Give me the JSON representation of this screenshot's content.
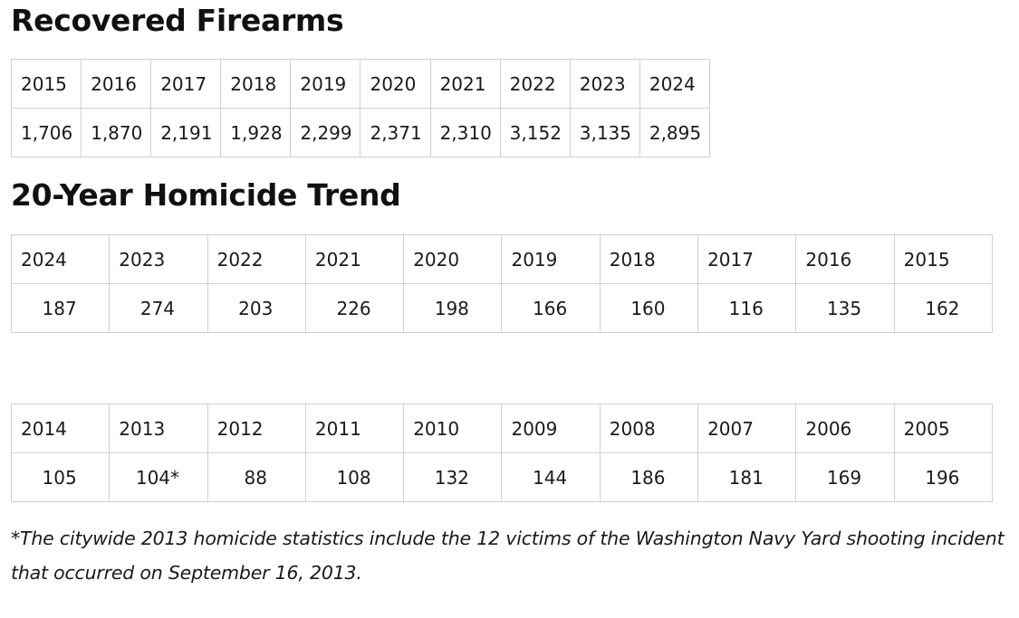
{
  "recovered_firearms": {
    "heading": "Recovered Firearms",
    "years": [
      "2015",
      "2016",
      "2017",
      "2018",
      "2019",
      "2020",
      "2021",
      "2022",
      "2023",
      "2024"
    ],
    "counts": [
      "1,706",
      "1,870",
      "2,191",
      "1,928",
      "2,299",
      "2,371",
      "2,310",
      "3,152",
      "3,135",
      "2,895"
    ]
  },
  "homicide_trend": {
    "heading": "20-Year Homicide Trend",
    "recent": {
      "years": [
        "2024",
        "2023",
        "2022",
        "2021",
        "2020",
        "2019",
        "2018",
        "2017",
        "2016",
        "2015"
      ],
      "counts": [
        "187",
        "274",
        "203",
        "226",
        "198",
        "166",
        "160",
        "116",
        "135",
        "162"
      ]
    },
    "earlier": {
      "years": [
        "2014",
        "2013",
        "2012",
        "2011",
        "2010",
        "2009",
        "2008",
        "2007",
        "2006",
        "2005"
      ],
      "counts": [
        "105",
        "104*",
        "88",
        "108",
        "132",
        "144",
        "186",
        "181",
        "169",
        "196"
      ]
    }
  },
  "footnote": "*The citywide 2013 homicide statistics include the 12 victims of the Washington Navy Yard shooting incident that occurred on September 16, 2013."
}
